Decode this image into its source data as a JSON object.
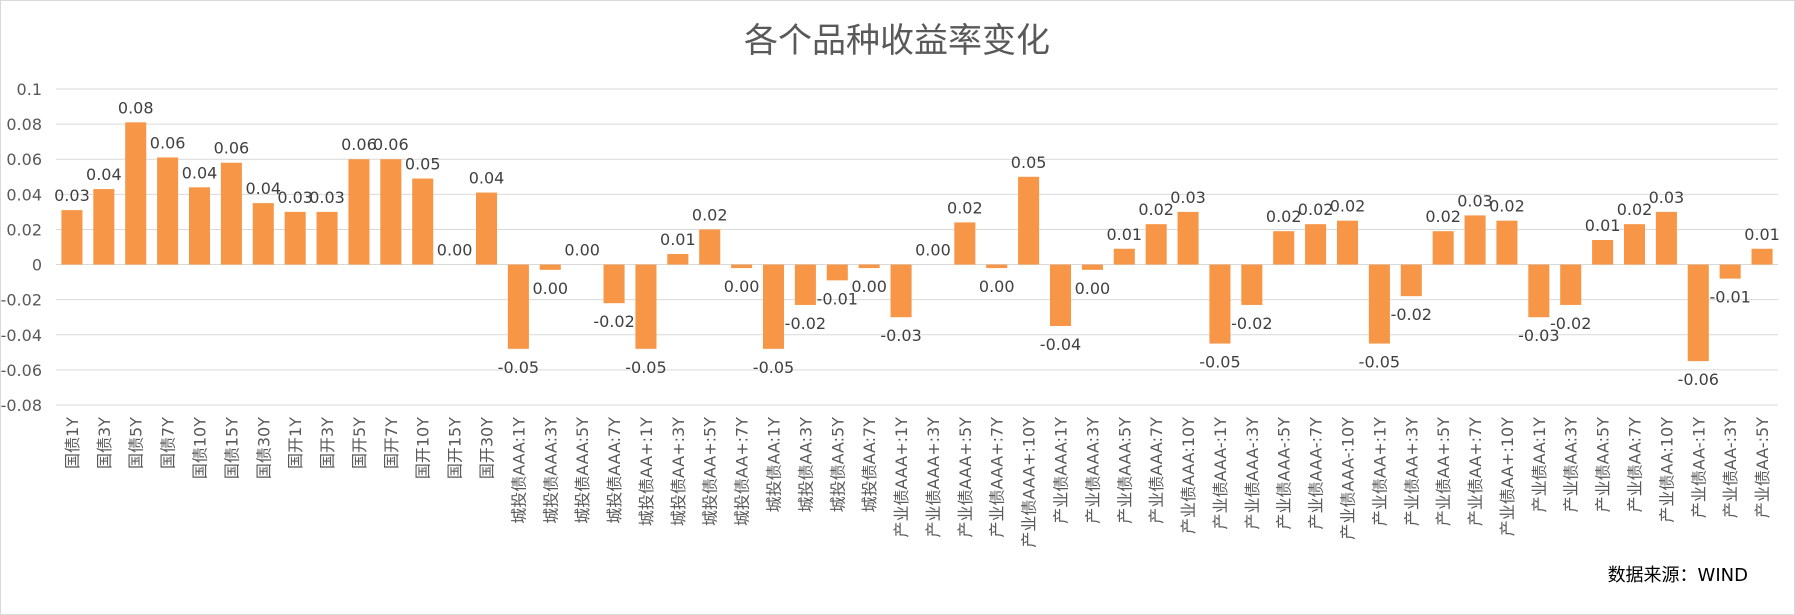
{
  "chart_data": {
    "type": "bar",
    "title": "各个品种收益率变化",
    "source": "数据来源：WIND",
    "ylim": [
      -0.08,
      0.1
    ],
    "yticks": [
      "0.1",
      "0.08",
      "0.06",
      "0.04",
      "0.02",
      "0",
      "-0.02",
      "-0.04",
      "-0.06",
      "-0.08"
    ],
    "grid": true,
    "bar_color": "#F79646",
    "categories": [
      "国债1Y",
      "国债3Y",
      "国债5Y",
      "国债7Y",
      "国债10Y",
      "国债15Y",
      "国债30Y",
      "国开1Y",
      "国开3Y",
      "国开5Y",
      "国开7Y",
      "国开10Y",
      "国开15Y",
      "国开30Y",
      "城投债AAA:1Y",
      "城投债AAA:3Y",
      "城投债AAA:5Y",
      "城投债AAA:7Y",
      "城投债AA+:1Y",
      "城投债AA+:3Y",
      "城投债AA+:5Y",
      "城投债AA+:7Y",
      "城投债AA:1Y",
      "城投债AA:3Y",
      "城投债AA:5Y",
      "城投债AA:7Y",
      "产业债AAA+:1Y",
      "产业债AAA+:3Y",
      "产业债AAA+:5Y",
      "产业债AAA+:7Y",
      "产业债AAA+:10Y",
      "产业债AAA:1Y",
      "产业债AAA:3Y",
      "产业债AAA:5Y",
      "产业债AAA:7Y",
      "产业债AAA:10Y",
      "产业债AAA-:1Y",
      "产业债AAA-:3Y",
      "产业债AAA-:5Y",
      "产业债AAA-:7Y",
      "产业债AAA-:10Y",
      "产业债AA+:1Y",
      "产业债AA+:3Y",
      "产业债AA+:5Y",
      "产业债AA+:7Y",
      "产业债AA+:10Y",
      "产业债AA:1Y",
      "产业债AA:3Y",
      "产业债AA:5Y",
      "产业债AA:7Y",
      "产业债AA:10Y",
      "产业债AA-:1Y",
      "产业债AA-:3Y",
      "产业债AA-:5Y"
    ],
    "values": [
      0.031,
      0.043,
      0.081,
      0.061,
      0.044,
      0.058,
      0.035,
      0.03,
      0.03,
      0.06,
      0.06,
      0.049,
      0.0,
      0.041,
      -0.048,
      -0.003,
      0.0,
      -0.022,
      -0.048,
      0.006,
      0.02,
      -0.002,
      -0.048,
      -0.023,
      -0.009,
      -0.002,
      -0.03,
      0.0,
      0.024,
      -0.002,
      0.05,
      -0.035,
      -0.003,
      0.009,
      0.023,
      0.03,
      -0.045,
      -0.023,
      0.019,
      0.023,
      0.025,
      -0.045,
      -0.018,
      0.019,
      0.028,
      0.025,
      -0.03,
      -0.023,
      0.014,
      0.023,
      0.03,
      -0.055,
      -0.008,
      0.009
    ],
    "labels": [
      "0.03",
      "0.04",
      "0.08",
      "0.06",
      "0.04",
      "0.06",
      "0.04",
      "0.03",
      "0.03",
      "0.06",
      "0.06",
      "0.05",
      "0.00",
      "0.04",
      "-0.05",
      "0.00",
      "0.00",
      "-0.02",
      "-0.05",
      "0.01",
      "0.02",
      "0.00",
      "-0.05",
      "-0.02",
      "-0.01",
      "0.00",
      "-0.03",
      "0.00",
      "0.02",
      "0.00",
      "0.05",
      "-0.04",
      "0.00",
      "0.01",
      "0.02",
      "0.03",
      "-0.05",
      "-0.02",
      "0.02",
      "0.02",
      "0.02",
      "-0.05",
      "-0.02",
      "0.02",
      "0.03",
      "0.02",
      "-0.03",
      "-0.02",
      "0.01",
      "0.02",
      "0.03",
      "-0.06",
      "-0.01",
      "0.01"
    ]
  }
}
